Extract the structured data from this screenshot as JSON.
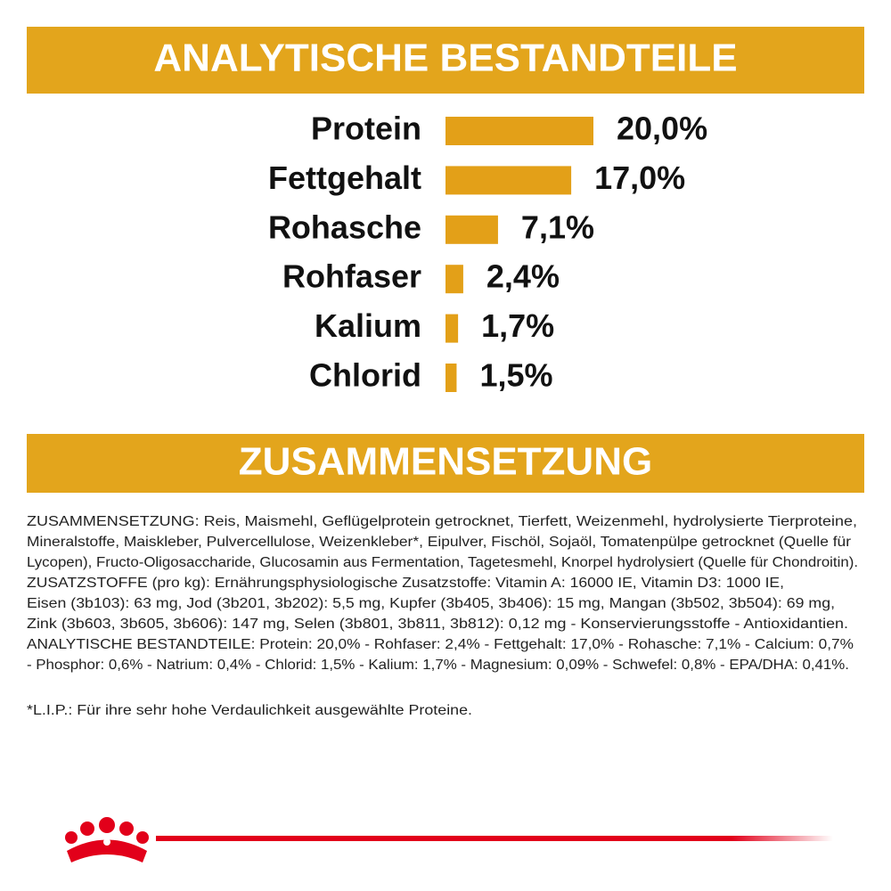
{
  "chart_data": {
    "type": "bar",
    "orientation": "horizontal",
    "title": "ANALYTISCHE BESTANDTEILE",
    "categories": [
      "Protein",
      "Fettgehalt",
      "Rohasche",
      "Rohfaser",
      "Kalium",
      "Chlorid"
    ],
    "values": [
      20.0,
      17.0,
      7.1,
      2.4,
      1.7,
      1.5
    ],
    "value_labels": [
      "20,0%",
      "17,0%",
      "7,1%",
      "2,4%",
      "1,7%",
      "1,5%"
    ],
    "color": "#e3a018"
  },
  "composition": {
    "title": "ZUSAMMENSETZUNG",
    "lines": [
      "ZUSAMMENSETZUNG: Reis, Maismehl, Geflügelprotein getrocknet, Tierfett, Weizenmehl, hydrolysierte Tierproteine,",
      "Mineralstoffe, Maiskleber, Pulvercellulose, Weizenkleber*, Eipulver, Fischöl, Sojaöl, Tomatenpülpe getrocknet (Quelle für",
      "Lycopen), Fructo-Oligosaccharide, Glucosamin aus Fermentation, Tagetesmehl, Knorpel hydrolysiert (Quelle für Chondroitin).",
      "ZUSATZSTOFFE (pro kg): Ernährungsphysiologische Zusatzstoffe: Vitamin A: 16000 IE, Vitamin D3: 1000 IE,",
      "Eisen (3b103): 63 mg, Jod (3b201, 3b202): 5,5 mg, Kupfer (3b405, 3b406): 15 mg, Mangan (3b502, 3b504): 69 mg,",
      "Zink (3b603, 3b605, 3b606): 147 mg, Selen (3b801, 3b811, 3b812): 0,12 mg - Konservierungsstoffe - Antioxidantien.",
      "ANALYTISCHE BESTANDTEILE: Protein: 20,0% - Rohfaser: 2,4% - Fettgehalt: 17,0% - Rohasche: 7,1% - Calcium: 0,7%",
      "- Phosphor: 0,6% - Natrium: 0,4% - Chlorid: 1,5% - Kalium: 1,7% - Magnesium: 0,09% - Schwefel: 0,8% - EPA/DHA: 0,41%."
    ],
    "footnote": "*L.I.P.: Für ihre sehr hohe Verdaulichkeit ausgewählte Proteine."
  }
}
